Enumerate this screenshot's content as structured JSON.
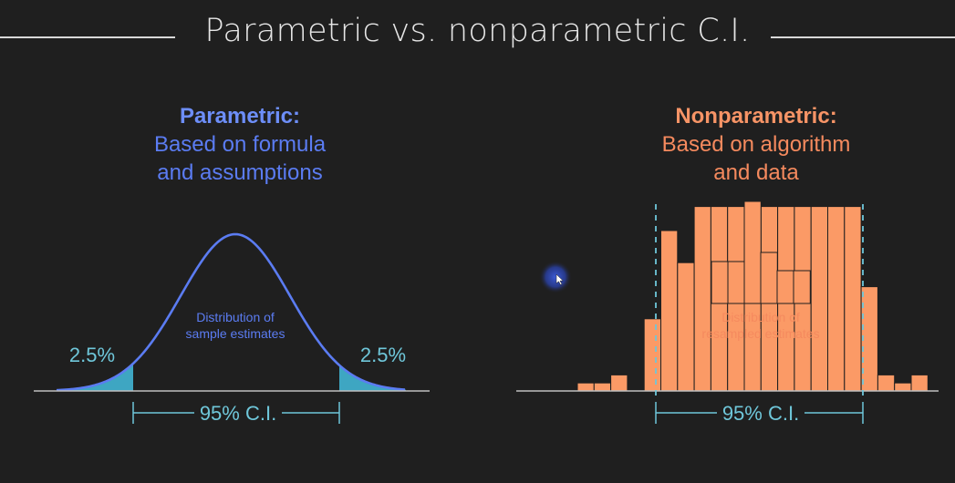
{
  "title": "Parametric vs. nonparametric C.I.",
  "parametric": {
    "heading": "Parametric:",
    "line1": "Based on formula",
    "line2": "and assumptions",
    "dist_label_1": "Distribution of",
    "dist_label_2": "sample estimates",
    "left_tail": "2.5%",
    "right_tail": "2.5%",
    "ci_label": "95% C.I."
  },
  "nonparametric": {
    "heading": "Nonparametric:",
    "line1": "Based on algorithm",
    "line2": "and data",
    "dist_label_1": "Distribution of",
    "dist_label_2": "resampled estimates",
    "ci_label": "95% C.I.",
    "histogram_bar_heights_relative": [
      0.01,
      0.01,
      0.02,
      0.0,
      0.09,
      0.2,
      0.16,
      0.23,
      0.23,
      0.23,
      0.23,
      0.23,
      0.23,
      0.23,
      0.23,
      0.23,
      0.23,
      0.13,
      0.02,
      0.01,
      0.02
    ]
  },
  "colors": {
    "parametric": "#5b7cf2",
    "nonparametric": "#f58a5e",
    "accent": "#6fc7da",
    "background": "#1f1f1f"
  }
}
